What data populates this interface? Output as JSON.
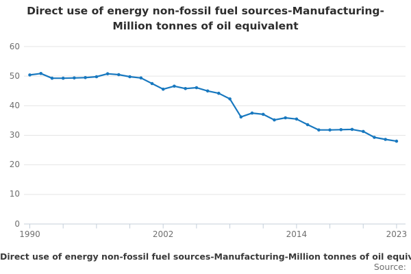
{
  "title_lines": [
    "Direct use of energy non-fossil fuel sources-Manufacturing-",
    "Million tonnes of oil equivalent"
  ],
  "footer": {
    "caption": "Direct use of energy non-fossil fuel sources-Manufacturing-Million tonnes of oil equivalent",
    "source_label": "Source:"
  },
  "colors": {
    "line": "#1878bf",
    "grid": "#e4e4e4",
    "axis": "#c4cfda",
    "tick_label": "#6e6e6e",
    "title": "#2d2d2d",
    "caption": "#3a3a3a",
    "source": "#6f6f6f",
    "background": "#ffffff"
  },
  "chart_data": {
    "type": "line",
    "title": "Direct use of energy non-fossil fuel sources-Manufacturing-Million tonnes of oil equivalent",
    "xlabel": "",
    "ylabel": "",
    "ylim": [
      0,
      60
    ],
    "yticks": [
      0,
      10,
      20,
      30,
      40,
      50,
      60
    ],
    "xtick_labels": [
      1990,
      2002,
      2014,
      2023
    ],
    "xticks_minor_every_years": 3,
    "grid": "horizontal",
    "legend": "none",
    "marker": "circle",
    "x": [
      1990,
      1991,
      1992,
      1993,
      1994,
      1995,
      1996,
      1997,
      1998,
      1999,
      2000,
      2001,
      2002,
      2003,
      2004,
      2005,
      2006,
      2007,
      2008,
      2009,
      2010,
      2011,
      2012,
      2013,
      2014,
      2015,
      2016,
      2017,
      2018,
      2019,
      2020,
      2021,
      2022,
      2023
    ],
    "series": [
      {
        "name": "Direct use of energy non-fossil fuel sources-Manufacturing-Million tonnes of oil equivalent",
        "values": [
          50.4,
          50.9,
          49.3,
          49.3,
          49.4,
          49.5,
          49.8,
          50.8,
          50.5,
          49.8,
          49.4,
          47.5,
          45.6,
          46.6,
          45.8,
          46.1,
          45.0,
          44.2,
          42.3,
          36.2,
          37.5,
          37.1,
          35.2,
          35.9,
          35.5,
          33.6,
          31.8,
          31.8,
          31.9,
          32.0,
          31.3,
          29.3,
          28.6,
          28.0
        ]
      }
    ]
  }
}
